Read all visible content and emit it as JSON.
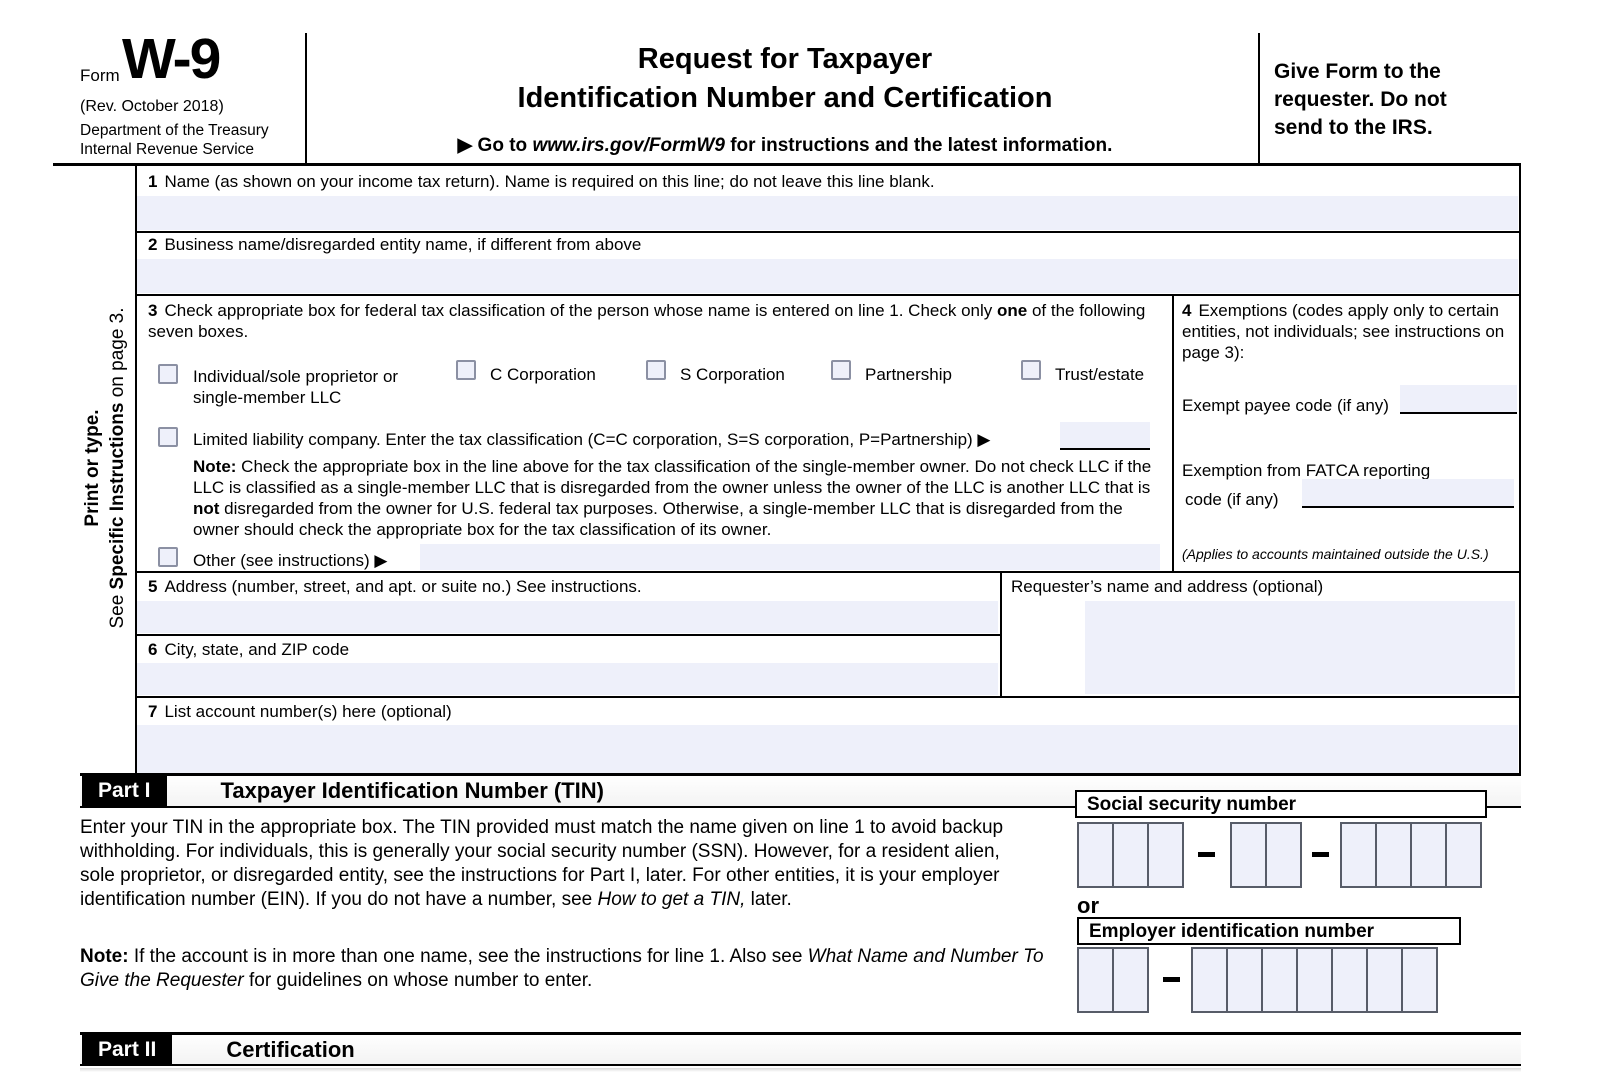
{
  "colors": {
    "field_bg": "#eef0fa",
    "checkbox_border": "#8b90a3",
    "cell_border": "#575c68",
    "ink": "#000000"
  },
  "header": {
    "form_word": "Form",
    "form_number": "W-9",
    "revision": "(Rev. October 2018)",
    "department": "Department of the Treasury",
    "service": "Internal Revenue Service",
    "title_line1": "Request for Taxpayer",
    "title_line2": "Identification Number and Certification",
    "goto_arrow_icon": "▶",
    "goto_pre": "Go to ",
    "goto_url": "www.irs.gov/FormW9",
    "goto_post": " for instructions and the latest information.",
    "give_form": "Give Form to the requester. Do not send to the IRS."
  },
  "sidebar": {
    "line1": "Print or type.",
    "line2_pre": "See ",
    "line2_bold": "Specific Instructions",
    "line2_post": " on page 3."
  },
  "lines": {
    "l1": {
      "num": "1",
      "label": "Name (as shown on your income tax return). Name is required on this line; do not leave this line blank."
    },
    "l2": {
      "num": "2",
      "label": "Business name/disregarded entity name, if different from above"
    },
    "l3": {
      "num": "3",
      "pre": "Check appropriate box for federal tax classification of the person whose name is entered on line 1. Check only ",
      "bold": "one",
      "post": " of the following seven boxes.",
      "boxes": [
        "Individual/sole proprietor or",
        "single-member LLC",
        "C Corporation",
        "S Corporation",
        "Partnership",
        "Trust/estate"
      ],
      "llc_label": "Limited liability company. Enter the tax classification (C=C corporation, S=S corporation, P=Partnership) ",
      "llc_arrow_icon": "▶",
      "note_bold": "Note:",
      "note_seg1": " Check the appropriate box in the line above for the tax classification of the single-member owner.  Do not check LLC if the LLC is classified as a single-member LLC that is disregarded from the owner unless the owner of the LLC is another LLC that is ",
      "note_bold2": "not",
      "note_seg2": " disregarded from the owner for U.S. federal tax purposes. Otherwise, a single-member LLC that is disregarded from the owner should check the appropriate box for the tax classification of its owner.",
      "other_label": "Other (see instructions) ",
      "other_arrow_icon": "▶"
    },
    "l4": {
      "num": "4",
      "label": "Exemptions (codes apply only to certain entities, not individuals; see instructions on page 3):",
      "exempt_label": "Exempt payee code (if any)",
      "fatca_label1": "Exemption from FATCA reporting",
      "fatca_label2": "code (if any)",
      "applies": "(Applies to accounts maintained outside the U.S.)"
    },
    "l5": {
      "num": "5",
      "label": "Address (number, street, and apt. or suite no.) See instructions."
    },
    "requester": {
      "label": "Requester’s name and address (optional)"
    },
    "l6": {
      "num": "6",
      "label": "City, state, and ZIP code"
    },
    "l7": {
      "num": "7",
      "label": "List account number(s) here (optional)"
    }
  },
  "part1": {
    "bar_label": "Part I",
    "bar_title": "Taxpayer Identification Number (TIN)",
    "intro_seg1": "Enter your TIN in the appropriate box. The TIN provided must match the name given on line 1 to avoid backup withholding. For individuals, this is generally your social security number (SSN). However, for a resident alien, sole proprietor, or disregarded entity, see the instructions for Part I, later. For other entities, it is your employer identification number (EIN). If you do not have a number, see ",
    "intro_italic": "How to get a TIN,",
    "intro_seg2": " later.",
    "note_bold": "Note:",
    "note_seg1": " If the account is in more than one name, see the instructions for line 1. Also see ",
    "note_italic": "What Name and Number To Give the Requester",
    "note_seg2": " for guidelines on whose number to enter.",
    "ssn_label": "Social security number",
    "ssn_groups": [
      3,
      2,
      4
    ],
    "or_label": "or",
    "ein_label": "Employer identification number",
    "ein_groups": [
      2,
      7
    ]
  },
  "part2": {
    "bar_label": "Part II",
    "bar_title": "Certification"
  }
}
